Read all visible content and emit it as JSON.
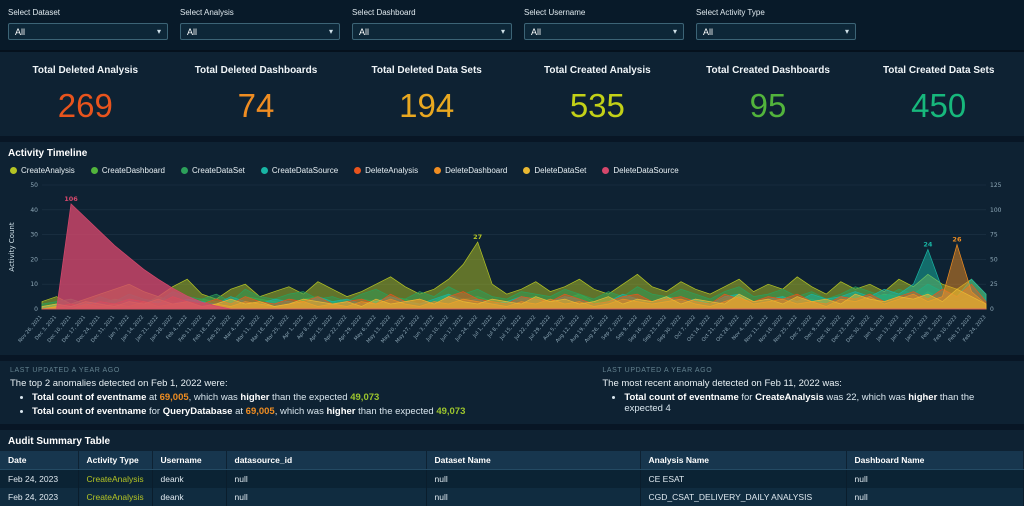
{
  "filters": {
    "items": [
      {
        "label": "Select Dataset",
        "value": "All"
      },
      {
        "label": "Select Analysis",
        "value": "All"
      },
      {
        "label": "Select Dashboard",
        "value": "All"
      },
      {
        "label": "Select Username",
        "value": "All"
      },
      {
        "label": "Select Activity Type",
        "value": "All"
      }
    ]
  },
  "kpis": {
    "items": [
      {
        "label": "Total Deleted Analysis",
        "value": "269",
        "color": "#e8541d"
      },
      {
        "label": "Total Deleted Dashboards",
        "value": "74",
        "color": "#ef8d22"
      },
      {
        "label": "Total Deleted Data Sets",
        "value": "194",
        "color": "#e9a820"
      },
      {
        "label": "Total Created Analysis",
        "value": "535",
        "color": "#c3d117"
      },
      {
        "label": "Total Created Dashboards",
        "value": "95",
        "color": "#52b43c"
      },
      {
        "label": "Total Created Data Sets",
        "value": "450",
        "color": "#17b87c"
      }
    ]
  },
  "sections": {
    "timeline_title": "Activity Timeline",
    "table_title": "Audit Summary Table"
  },
  "chart_data": {
    "type": "area",
    "title": "Activity Timeline",
    "ylabel": "Activity Count",
    "legend_position": "top",
    "grid": true,
    "axes": {
      "left": {
        "max": 50,
        "ticks": [
          0,
          10,
          20,
          30,
          40,
          50
        ]
      },
      "right": {
        "max": 125,
        "ticks": [
          0,
          25,
          50,
          75,
          100,
          125
        ]
      }
    },
    "categories": [
      "Nov 26, 2021",
      "Dec 3, 2021",
      "Dec 10, 2021",
      "Dec 17, 2021",
      "Dec 24, 2021",
      "Dec 31, 2021",
      "Jan 7, 2022",
      "Jan 14, 2022",
      "Jan 21, 2022",
      "Jan 28, 2022",
      "Feb 4, 2022",
      "Feb 11, 2022",
      "Feb 18, 2022",
      "Feb 25, 2022",
      "Mar 4, 2022",
      "Mar 11, 2022",
      "Mar 18, 2022",
      "Mar 25, 2022",
      "Apr 1, 2022",
      "Apr 8, 2022",
      "Apr 15, 2022",
      "Apr 22, 2022",
      "Apr 29, 2022",
      "May 6, 2022",
      "May 13, 2022",
      "May 20, 2022",
      "May 27, 2022",
      "Jun 3, 2022",
      "Jun 10, 2022",
      "Jun 17, 2022",
      "Jun 24, 2022",
      "Jul 1, 2022",
      "Jul 8, 2022",
      "Jul 15, 2022",
      "Jul 22, 2022",
      "Jul 29, 2022",
      "Aug 5, 2022",
      "Aug 12, 2022",
      "Aug 19, 2022",
      "Aug 26, 2022",
      "Sep 2, 2022",
      "Sep 9, 2022",
      "Sep 16, 2022",
      "Sep 23, 2022",
      "Sep 30, 2022",
      "Oct 7, 2022",
      "Oct 14, 2022",
      "Oct 21, 2022",
      "Oct 28, 2022",
      "Nov 4, 2022",
      "Nov 11, 2022",
      "Nov 18, 2022",
      "Nov 25, 2022",
      "Dec 2, 2022",
      "Dec 9, 2022",
      "Dec 16, 2022",
      "Dec 23, 2022",
      "Dec 30, 2022",
      "Jan 6, 2023",
      "Jan 13, 2023",
      "Jan 20, 2023",
      "Jan 27, 2023",
      "Feb 3, 2023",
      "Feb 10, 2023",
      "Feb 17, 2023",
      "Feb 24, 2023"
    ],
    "series": [
      {
        "name": "CreateAnalysis",
        "color": "#b4c424",
        "axis": "left",
        "fill_opacity": 0.5,
        "values": [
          3,
          5,
          2,
          4,
          6,
          8,
          10,
          7,
          5,
          9,
          12,
          6,
          4,
          8,
          10,
          5,
          7,
          9,
          6,
          11,
          8,
          5,
          7,
          10,
          13,
          9,
          6,
          8,
          12,
          18,
          27,
          10,
          6,
          8,
          11,
          7,
          9,
          12,
          8,
          6,
          10,
          14,
          9,
          7,
          11,
          8,
          6,
          9,
          12,
          7,
          10,
          8,
          13,
          9,
          6,
          11,
          8,
          10,
          7,
          12,
          9,
          14,
          10,
          8,
          12,
          6
        ]
      },
      {
        "name": "CreateDashboard",
        "color": "#52b43c",
        "axis": "left",
        "fill_opacity": 0.5,
        "values": [
          1,
          2,
          1,
          3,
          2,
          4,
          3,
          2,
          5,
          3,
          2,
          4,
          3,
          2,
          5,
          4,
          3,
          2,
          4,
          5,
          3,
          2,
          4,
          3,
          5,
          4,
          2,
          3,
          6,
          4,
          5,
          3,
          2,
          4,
          5,
          3,
          4,
          6,
          3,
          2,
          5,
          4,
          3,
          5,
          4,
          3,
          2,
          4,
          6,
          3,
          4,
          5,
          3,
          4,
          2,
          5,
          3,
          4,
          6,
          5,
          3,
          7,
          4,
          3,
          5,
          2
        ]
      },
      {
        "name": "CreateDataSet",
        "color": "#2ca05a",
        "axis": "left",
        "fill_opacity": 0.5,
        "values": [
          2,
          3,
          4,
          2,
          5,
          3,
          6,
          4,
          3,
          7,
          5,
          4,
          6,
          3,
          8,
          5,
          4,
          6,
          7,
          4,
          5,
          3,
          6,
          8,
          5,
          4,
          7,
          5,
          9,
          6,
          8,
          5,
          4,
          7,
          6,
          5,
          8,
          6,
          4,
          7,
          5,
          9,
          6,
          5,
          8,
          6,
          4,
          7,
          9,
          5,
          6,
          8,
          5,
          7,
          4,
          6,
          9,
          7,
          5,
          8,
          6,
          10,
          7,
          5,
          9,
          4
        ]
      },
      {
        "name": "CreateDataSource",
        "color": "#18b5a4",
        "axis": "left",
        "fill_opacity": 0.5,
        "values": [
          1,
          2,
          1,
          2,
          3,
          2,
          4,
          2,
          3,
          2,
          4,
          3,
          2,
          5,
          3,
          2,
          4,
          3,
          2,
          5,
          3,
          4,
          2,
          3,
          5,
          3,
          2,
          4,
          6,
          3,
          4,
          2,
          3,
          5,
          4,
          3,
          5,
          4,
          2,
          3,
          6,
          4,
          3,
          5,
          3,
          4,
          2,
          5,
          6,
          3,
          4,
          5,
          3,
          6,
          4,
          5,
          7,
          5,
          8,
          6,
          10,
          24,
          8,
          5,
          12,
          6
        ]
      },
      {
        "name": "DeleteAnalysis",
        "color": "#e8541d",
        "axis": "left",
        "fill_opacity": 0.5,
        "values": [
          0,
          1,
          2,
          1,
          3,
          2,
          4,
          3,
          2,
          5,
          3,
          2,
          4,
          2,
          5,
          3,
          2,
          4,
          3,
          5,
          2,
          3,
          4,
          2,
          6,
          3,
          4,
          2,
          5,
          7,
          4,
          3,
          2,
          5,
          4,
          3,
          6,
          4,
          2,
          3,
          5,
          6,
          3,
          4,
          5,
          3,
          2,
          6,
          4,
          3,
          5,
          4,
          6,
          3,
          2,
          5,
          4,
          6,
          3,
          5,
          7,
          4,
          8,
          5,
          10,
          3
        ]
      },
      {
        "name": "DeleteDashboard",
        "color": "#ef8d22",
        "axis": "left",
        "fill_opacity": 0.5,
        "values": [
          0,
          1,
          0,
          2,
          1,
          2,
          1,
          3,
          1,
          2,
          3,
          1,
          2,
          1,
          3,
          2,
          1,
          2,
          3,
          1,
          2,
          1,
          3,
          2,
          4,
          2,
          1,
          3,
          2,
          4,
          3,
          2,
          1,
          3,
          2,
          4,
          2,
          3,
          1,
          2,
          4,
          3,
          2,
          3,
          4,
          2,
          1,
          3,
          5,
          2,
          3,
          4,
          2,
          3,
          1,
          4,
          3,
          5,
          2,
          4,
          6,
          3,
          5,
          26,
          7,
          2
        ]
      },
      {
        "name": "DeleteDataSet",
        "color": "#e9b832",
        "axis": "left",
        "fill_opacity": 0.5,
        "values": [
          1,
          2,
          1,
          3,
          2,
          1,
          3,
          2,
          4,
          2,
          3,
          1,
          2,
          4,
          2,
          3,
          1,
          2,
          4,
          3,
          2,
          3,
          1,
          4,
          2,
          3,
          4,
          2,
          5,
          3,
          2,
          4,
          3,
          2,
          5,
          3,
          4,
          2,
          3,
          5,
          2,
          4,
          3,
          5,
          2,
          4,
          3,
          2,
          6,
          3,
          4,
          2,
          5,
          3,
          4,
          2,
          6,
          4,
          3,
          5,
          4,
          6,
          3,
          8,
          5,
          2
        ]
      },
      {
        "name": "DeleteDataSource",
        "color": "#d5476b",
        "axis": "right",
        "fill_opacity": 0.8,
        "values": [
          0,
          0,
          106,
          92,
          78,
          64,
          52,
          40,
          30,
          21,
          13,
          7,
          3,
          0,
          0,
          0,
          0,
          0,
          0,
          0,
          0,
          0,
          0,
          0,
          0,
          0,
          0,
          0,
          0,
          0,
          0,
          0,
          0,
          0,
          0,
          0,
          0,
          0,
          0,
          0,
          0,
          0,
          0,
          0,
          0,
          0,
          0,
          0,
          0,
          0,
          0,
          0,
          0,
          0,
          0,
          0,
          0,
          0,
          0,
          0,
          0,
          0,
          0,
          0,
          0,
          0
        ]
      }
    ],
    "annotations": [
      {
        "series_index": 7,
        "point_index": 2,
        "label": "106"
      },
      {
        "series_index": 0,
        "point_index": 30,
        "label": "27"
      },
      {
        "series_index": 3,
        "point_index": 61,
        "label": "24"
      },
      {
        "series_index": 5,
        "point_index": 63,
        "label": "26"
      }
    ]
  },
  "insights": {
    "left": {
      "updated": "LAST UPDATED A YEAR AGO",
      "title": "The top 2 anomalies detected on Feb 1, 2022 were:",
      "bullet1": {
        "b1": "Total count of eventname",
        "t1": " at ",
        "v1": "69,005",
        "t2": ", which was ",
        "b2": "higher",
        "t3": " than the expected ",
        "v2": "49,073"
      },
      "bullet2": {
        "b1": "Total count of eventname",
        "t1": " for ",
        "b2": "QueryDatabase",
        "t2": " at ",
        "v1": "69,005",
        "t3": ", which was ",
        "b3": "higher",
        "t4": " than the expected ",
        "v2": "49,073"
      }
    },
    "right": {
      "updated": "LAST UPDATED A YEAR AGO",
      "title": "The most recent anomaly detected on Feb 11, 2022 was:",
      "bullet1": {
        "b1": "Total count of eventname",
        "t1": " for ",
        "b2": "CreateAnalysis",
        "t2": " was 22, which was ",
        "b3": "higher",
        "t3": " than the expected 4"
      }
    }
  },
  "table": {
    "title": "Audit Summary Table",
    "columns": [
      "Date",
      "Activity Type",
      "Username",
      "datasource_id",
      "Dataset Name",
      "Analysis Name",
      "Dashboard Name"
    ],
    "activity_color": "#b4c424",
    "rows": [
      [
        "Feb 24, 2023",
        "CreateAnalysis",
        "deank",
        "null",
        "null",
        "CE ESAT",
        "null"
      ],
      [
        "Feb 24, 2023",
        "CreateAnalysis",
        "deank",
        "null",
        "null",
        "CGD_CSAT_DELIVERY_DAILY ANALYSIS",
        "null"
      ]
    ]
  }
}
